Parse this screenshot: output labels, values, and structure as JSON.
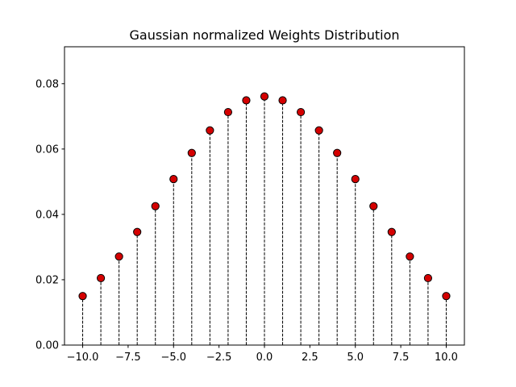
{
  "chart_data": {
    "type": "scatter",
    "title": "Gaussian normalized Weights Distribution",
    "xlabel": "",
    "ylabel": "",
    "x": [
      -10,
      -9,
      -8,
      -7,
      -6,
      -5,
      -4,
      -3,
      -2,
      -1,
      0,
      1,
      2,
      3,
      4,
      5,
      6,
      7,
      8,
      9,
      10
    ],
    "y": [
      0.015,
      0.0205,
      0.0271,
      0.0346,
      0.0425,
      0.0508,
      0.0588,
      0.0657,
      0.0713,
      0.0749,
      0.0761,
      0.0749,
      0.0713,
      0.0657,
      0.0588,
      0.0508,
      0.0425,
      0.0346,
      0.0271,
      0.0205,
      0.015
    ],
    "xlim": [
      -11.0,
      11.0
    ],
    "ylim": [
      0.0,
      0.0913
    ],
    "xticks": [
      -10.0,
      -7.5,
      -5.0,
      -2.5,
      0.0,
      2.5,
      5.0,
      7.5,
      10.0
    ],
    "xtick_labels": [
      "−10.0",
      "−7.5",
      "−5.0",
      "−2.5",
      "0.0",
      "2.5",
      "5.0",
      "7.5",
      "10.0"
    ],
    "yticks": [
      0.0,
      0.02,
      0.04,
      0.06,
      0.08
    ],
    "ytick_labels": [
      "0.00",
      "0.02",
      "0.04",
      "0.06",
      "0.08"
    ],
    "grid": false,
    "stems": "dashed vertical lines from 0 to each point",
    "colors": {
      "marker_fill": "#d40000",
      "marker_edge": "#000000",
      "stem": "#000000"
    }
  }
}
